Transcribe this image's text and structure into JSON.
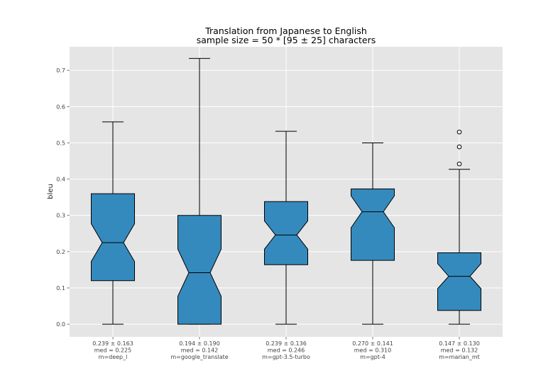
{
  "chart_data": {
    "type": "boxplot",
    "title": "Translation from Japanese to English",
    "subtitle": "sample size = 50 * [95 ± 25] characters",
    "ylabel": "bleu",
    "xlabel": "",
    "ylim": [
      -0.035,
      0.765
    ],
    "yticks": [
      "0.0",
      "0.1",
      "0.2",
      "0.3",
      "0.4",
      "0.5",
      "0.6",
      "0.7"
    ],
    "grid": true,
    "notched": true,
    "box_color": "#348ABD",
    "background_color": "#E5E5E5",
    "categories": [
      {
        "name": "m=deep_l",
        "summary": "0.239 ± 0.163",
        "median_label": "med = 0.225",
        "whisker_low": 0.0,
        "q1": 0.12,
        "median": 0.225,
        "q3": 0.36,
        "whisker_high": 0.558,
        "notch_low": 0.173,
        "notch_high": 0.277,
        "outliers": []
      },
      {
        "name": "m=google_translate",
        "summary": "0.194 ± 0.190",
        "median_label": "med = 0.142",
        "whisker_low": 0.0,
        "q1": 0.0,
        "median": 0.142,
        "q3": 0.3,
        "whisker_high": 0.733,
        "notch_low": 0.077,
        "notch_high": 0.207,
        "outliers": []
      },
      {
        "name": "m=gpt-3.5-turbo",
        "summary": "0.239 ± 0.136",
        "median_label": "med = 0.246",
        "whisker_low": 0.0,
        "q1": 0.164,
        "median": 0.246,
        "q3": 0.338,
        "whisker_high": 0.532,
        "notch_low": 0.207,
        "notch_high": 0.285,
        "outliers": []
      },
      {
        "name": "m=gpt-4",
        "summary": "0.270 ± 0.141",
        "median_label": "med = 0.310",
        "whisker_low": 0.0,
        "q1": 0.176,
        "median": 0.31,
        "q3": 0.373,
        "whisker_high": 0.5,
        "notch_low": 0.266,
        "notch_high": 0.354,
        "outliers": []
      },
      {
        "name": "m=marian_mt",
        "summary": "0.147 ± 0.130",
        "median_label": "med = 0.132",
        "whisker_low": 0.0,
        "q1": 0.038,
        "median": 0.132,
        "q3": 0.197,
        "whisker_high": 0.427,
        "notch_low": 0.098,
        "notch_high": 0.167,
        "outliers": [
          0.442,
          0.489,
          0.53
        ]
      }
    ]
  }
}
